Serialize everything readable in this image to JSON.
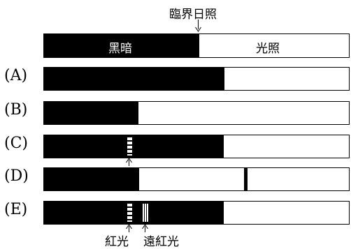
{
  "header": {
    "critical_label": "臨界日照",
    "dark_label": "黑暗",
    "light_label": "光照"
  },
  "rows": [
    {
      "label": "(A)"
    },
    {
      "label": "(B)"
    },
    {
      "label": "(C)"
    },
    {
      "label": "(D)"
    },
    {
      "label": "(E)"
    }
  ],
  "annotations": {
    "red_light": "紅光",
    "far_red_light": "遠紅光"
  }
}
